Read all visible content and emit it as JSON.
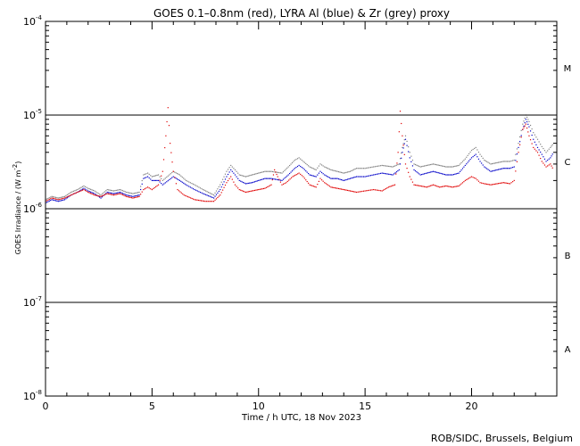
{
  "chart_data": {
    "type": "line",
    "title": "GOES 0.1–0.8nm (red), LYRA Al (blue) & Zr (grey) proxy",
    "xlabel": "Time / h UTC, 18 Nov 2023",
    "ylabel_prefix": "GOES Irradiance / (W m",
    "ylabel_exp": "-2",
    "ylabel_suffix": ")",
    "credit": "ROB/SIDC, Brussels, Belgium",
    "xlim": [
      0,
      24
    ],
    "ylim": [
      1e-08,
      0.0001
    ],
    "yscale": "log",
    "x_ticks": [
      {
        "value": 0,
        "label": "0"
      },
      {
        "value": 5,
        "label": "5"
      },
      {
        "value": 10,
        "label": "10"
      },
      {
        "value": 15,
        "label": "15"
      },
      {
        "value": 20,
        "label": "20"
      }
    ],
    "y_ticks": [
      {
        "value": 1e-08,
        "base": "10",
        "exp": "-8"
      },
      {
        "value": 1e-07,
        "base": "10",
        "exp": "-7"
      },
      {
        "value": 1e-06,
        "base": "10",
        "exp": "-6"
      },
      {
        "value": 1e-05,
        "base": "10",
        "exp": "-5"
      },
      {
        "value": 0.0001,
        "base": "10",
        "exp": "-4"
      }
    ],
    "flare_class_lines": [
      1e-07,
      1e-06,
      1e-05
    ],
    "flare_classes": [
      {
        "label": "A",
        "value": 3.2e-08
      },
      {
        "label": "B",
        "value": 3.2e-07
      },
      {
        "label": "C",
        "value": 3.2e-06
      },
      {
        "label": "M",
        "value": 3.2e-05
      }
    ],
    "grid": false,
    "series": [
      {
        "name": "GOES 0.1–0.8nm",
        "color": "#e00000",
        "x": [
          0.0,
          0.3,
          0.6,
          0.9,
          1.2,
          1.5,
          1.8,
          2.0,
          2.3,
          2.6,
          2.9,
          3.2,
          3.5,
          3.8,
          4.1,
          4.4,
          4.6,
          4.8,
          5.0,
          5.3,
          5.5,
          5.65,
          5.75,
          5.85,
          6.0,
          6.2,
          6.5,
          7.0,
          7.5,
          7.9,
          8.2,
          8.5,
          8.7,
          8.9,
          9.1,
          9.4,
          9.7,
          10.0,
          10.3,
          10.6,
          10.75,
          10.9,
          11.1,
          11.3,
          11.6,
          11.9,
          12.1,
          12.4,
          12.7,
          12.9,
          13.1,
          13.4,
          13.7,
          14.0,
          14.3,
          14.6,
          15.0,
          15.4,
          15.8,
          16.1,
          16.4,
          16.55,
          16.65,
          16.75,
          16.9,
          17.1,
          17.3,
          17.6,
          17.9,
          18.2,
          18.5,
          18.8,
          19.1,
          19.4,
          19.7,
          20.0,
          20.2,
          20.4,
          20.6,
          20.9,
          21.2,
          21.5,
          21.8,
          22.0,
          22.2,
          22.4,
          22.55,
          22.7,
          22.9,
          23.1,
          23.3,
          23.5,
          23.7,
          23.85
        ],
        "y": [
          1.2e-06,
          1.3e-06,
          1.25e-06,
          1.3e-06,
          1.4e-06,
          1.5e-06,
          1.6e-06,
          1.5e-06,
          1.4e-06,
          1.35e-06,
          1.45e-06,
          1.4e-06,
          1.45e-06,
          1.35e-06,
          1.3e-06,
          1.35e-06,
          1.6e-06,
          1.7e-06,
          1.6e-06,
          1.8e-06,
          2.5e-06,
          6e-06,
          1.2e-05,
          5e-06,
          2.5e-06,
          1.6e-06,
          1.4e-06,
          1.25e-06,
          1.2e-06,
          1.2e-06,
          1.4e-06,
          1.9e-06,
          2.2e-06,
          1.8e-06,
          1.6e-06,
          1.5e-06,
          1.55e-06,
          1.6e-06,
          1.65e-06,
          1.8e-06,
          2.6e-06,
          2.2e-06,
          1.8e-06,
          1.9e-06,
          2.2e-06,
          2.4e-06,
          2.2e-06,
          1.8e-06,
          1.7e-06,
          2.1e-06,
          1.9e-06,
          1.7e-06,
          1.65e-06,
          1.6e-06,
          1.55e-06,
          1.5e-06,
          1.55e-06,
          1.6e-06,
          1.55e-06,
          1.7e-06,
          1.8e-06,
          4e-06,
          1.1e-05,
          6e-06,
          3e-06,
          2.2e-06,
          1.8e-06,
          1.75e-06,
          1.7e-06,
          1.8e-06,
          1.7e-06,
          1.75e-06,
          1.7e-06,
          1.75e-06,
          2e-06,
          2.2e-06,
          2.1e-06,
          1.9e-06,
          1.85e-06,
          1.8e-06,
          1.85e-06,
          1.9e-06,
          1.85e-06,
          2e-06,
          4e-06,
          7e-06,
          8e-06,
          6e-06,
          4.5e-06,
          4e-06,
          3.2e-06,
          2.8e-06,
          3e-06,
          2.6e-06
        ]
      },
      {
        "name": "LYRA Al",
        "color": "#0000c8",
        "x": [
          0.0,
          0.3,
          0.6,
          0.9,
          1.2,
          1.5,
          1.8,
          2.0,
          2.3,
          2.6,
          2.9,
          3.2,
          3.5,
          3.8,
          4.1,
          4.4,
          4.6,
          4.8,
          5.0,
          5.3,
          5.5,
          6.0,
          6.3,
          6.6,
          7.0,
          7.4,
          7.9,
          8.2,
          8.5,
          8.7,
          8.9,
          9.1,
          9.4,
          9.7,
          10.0,
          10.3,
          10.6,
          11.1,
          11.4,
          11.7,
          11.9,
          12.1,
          12.4,
          12.7,
          12.9,
          13.1,
          13.4,
          13.7,
          14.0,
          14.3,
          14.6,
          15.0,
          15.4,
          15.8,
          16.3,
          16.6,
          16.75,
          16.9,
          17.1,
          17.3,
          17.6,
          17.9,
          18.2,
          18.5,
          18.8,
          19.1,
          19.4,
          19.7,
          20.0,
          20.2,
          20.4,
          20.6,
          20.9,
          21.2,
          21.5,
          21.8,
          22.0,
          22.2,
          22.4,
          22.55,
          22.7,
          22.9,
          23.1,
          23.3,
          23.5,
          23.7,
          23.85
        ],
        "y": [
          1.15e-06,
          1.25e-06,
          1.2e-06,
          1.25e-06,
          1.4e-06,
          1.5e-06,
          1.65e-06,
          1.55e-06,
          1.45e-06,
          1.3e-06,
          1.5e-06,
          1.45e-06,
          1.5e-06,
          1.4e-06,
          1.35e-06,
          1.4e-06,
          2.1e-06,
          2.2e-06,
          2e-06,
          2e-06,
          1.8e-06,
          2.2e-06,
          2e-06,
          1.8e-06,
          1.6e-06,
          1.45e-06,
          1.3e-06,
          1.6e-06,
          2.2e-06,
          2.6e-06,
          2.3e-06,
          2e-06,
          1.85e-06,
          1.9e-06,
          2e-06,
          2.1e-06,
          2.1e-06,
          2e-06,
          2.3e-06,
          2.7e-06,
          2.9e-06,
          2.7e-06,
          2.3e-06,
          2.2e-06,
          2.5e-06,
          2.3e-06,
          2.1e-06,
          2.1e-06,
          2e-06,
          2.1e-06,
          2.2e-06,
          2.2e-06,
          2.3e-06,
          2.4e-06,
          2.3e-06,
          2.6e-06,
          4e-06,
          5.5e-06,
          3.5e-06,
          2.6e-06,
          2.3e-06,
          2.4e-06,
          2.5e-06,
          2.4e-06,
          2.3e-06,
          2.3e-06,
          2.4e-06,
          2.9e-06,
          3.5e-06,
          3.8e-06,
          3.2e-06,
          2.8e-06,
          2.5e-06,
          2.6e-06,
          2.7e-06,
          2.7e-06,
          2.8e-06,
          4.5e-06,
          7e-06,
          9e-06,
          7.5e-06,
          5.5e-06,
          4.5e-06,
          3.8e-06,
          3.2e-06,
          3.5e-06,
          4e-06
        ]
      },
      {
        "name": "LYRA Zr",
        "color": "#808080",
        "x": [
          0.0,
          0.3,
          0.6,
          0.9,
          1.2,
          1.5,
          1.8,
          2.0,
          2.3,
          2.6,
          2.9,
          3.2,
          3.5,
          3.8,
          4.1,
          4.4,
          4.6,
          4.8,
          5.0,
          5.3,
          5.5,
          6.0,
          6.3,
          6.6,
          7.0,
          7.4,
          7.9,
          8.2,
          8.5,
          8.7,
          8.9,
          9.1,
          9.4,
          9.7,
          10.0,
          10.3,
          10.6,
          11.1,
          11.4,
          11.7,
          11.9,
          12.1,
          12.4,
          12.7,
          12.9,
          13.1,
          13.4,
          13.7,
          14.0,
          14.3,
          14.6,
          15.0,
          15.4,
          15.8,
          16.3,
          16.6,
          16.75,
          16.9,
          17.1,
          17.3,
          17.6,
          17.9,
          18.2,
          18.5,
          18.8,
          19.1,
          19.4,
          19.7,
          20.0,
          20.2,
          20.4,
          20.6,
          20.9,
          21.2,
          21.5,
          21.8,
          22.0,
          22.2,
          22.4,
          22.55,
          22.7,
          22.9,
          23.1,
          23.3,
          23.5,
          23.7,
          23.85
        ],
        "y": [
          1.25e-06,
          1.35e-06,
          1.3e-06,
          1.35e-06,
          1.5e-06,
          1.6e-06,
          1.75e-06,
          1.65e-06,
          1.55e-06,
          1.4e-06,
          1.6e-06,
          1.55e-06,
          1.6e-06,
          1.5e-06,
          1.45e-06,
          1.5e-06,
          2.3e-06,
          2.4e-06,
          2.2e-06,
          2.3e-06,
          2e-06,
          2.5e-06,
          2.3e-06,
          2e-06,
          1.8e-06,
          1.6e-06,
          1.4e-06,
          1.8e-06,
          2.5e-06,
          2.9e-06,
          2.6e-06,
          2.3e-06,
          2.2e-06,
          2.3e-06,
          2.4e-06,
          2.5e-06,
          2.5e-06,
          2.4e-06,
          2.8e-06,
          3.3e-06,
          3.5e-06,
          3.2e-06,
          2.8e-06,
          2.6e-06,
          3e-06,
          2.8e-06,
          2.6e-06,
          2.5e-06,
          2.4e-06,
          2.5e-06,
          2.7e-06,
          2.7e-06,
          2.8e-06,
          2.9e-06,
          2.8e-06,
          3e-06,
          4.5e-06,
          6e-06,
          4e-06,
          3e-06,
          2.8e-06,
          2.9e-06,
          3e-06,
          2.9e-06,
          2.8e-06,
          2.8e-06,
          2.9e-06,
          3.4e-06,
          4.2e-06,
          4.5e-06,
          3.8e-06,
          3.3e-06,
          3e-06,
          3.1e-06,
          3.2e-06,
          3.2e-06,
          3.3e-06,
          5e-06,
          8e-06,
          1e-05,
          8.5e-06,
          6.5e-06,
          5.5e-06,
          4.6e-06,
          4e-06,
          4.5e-06,
          5e-06
        ]
      }
    ]
  }
}
